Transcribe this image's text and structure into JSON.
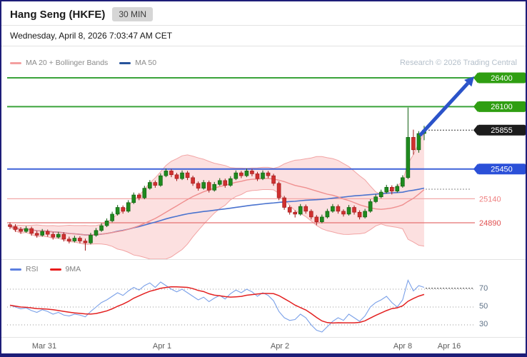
{
  "header": {
    "title": "Hang Seng (HKFE)",
    "timeframe_badge": "30 MIN",
    "datetime": "Wednesday, April 8, 2026 7:03:47 AM CET"
  },
  "legend": {
    "ma20_label": "MA 20 + Bollinger Bands",
    "ma50_label": "MA 50"
  },
  "watermark": "Research © 2026 Trading Central",
  "indicator_legend": {
    "rsi_label": "RSI",
    "ma_label": "9MA"
  },
  "rsi_scale": {
    "upper": "70",
    "middle": "50",
    "lower": "30"
  },
  "colors": {
    "up_candle": "#1f8a1f",
    "up_candle_edge": "#0c5c0c",
    "down_candle": "#d03030",
    "down_candle_edge": "#9c1616",
    "bollinger_fill": "rgba(247,178,178,0.40)",
    "bollinger_edge": "rgba(240,150,150,0.85)",
    "ma20_line": "#ef8f8f",
    "ma50_line": "#4a73cf",
    "rsi_line": "#7aa0e8",
    "rsi_ma_line": "#e32020",
    "arrow": "#2b53c9",
    "resistance_green": "#3aa33a",
    "support_blue": "#3f63d8"
  },
  "chart_data": {
    "type": "candlestick",
    "instrument": "Hang Seng (HKFE)",
    "interval": "30 MIN",
    "ylim": [
      24550,
      26650
    ],
    "last_price": 25855,
    "levels": [
      {
        "price": 26400,
        "label": "26400",
        "line_color": "#3aa33a",
        "line_width": 2,
        "label_bg": "#2f9e12",
        "label_text": "#ffffff",
        "style": "tag"
      },
      {
        "price": 26100,
        "label": "26100",
        "line_color": "#3aa33a",
        "line_width": 2,
        "label_bg": "#2f9e12",
        "label_text": "#ffffff",
        "style": "tag"
      },
      {
        "price": 25855,
        "label": "25855",
        "line_color": "none",
        "label_bg": "#1c1c1c",
        "label_text": "#ffffff",
        "style": "tag-dotted"
      },
      {
        "price": 25450,
        "label": "25450",
        "line_color": "#3f63d8",
        "line_width": 2,
        "label_bg": "#2b50d8",
        "label_text": "#ffffff",
        "style": "tag"
      },
      {
        "price": 25140,
        "label": "25140",
        "line_color": "#f2a8a8",
        "line_width": 1.3,
        "label_text": "#ef8080",
        "style": "text"
      },
      {
        "price": 24890,
        "label": "24890",
        "line_color": "#e57070",
        "line_width": 1.3,
        "label_text": "#e05050",
        "style": "text"
      }
    ],
    "overlays": {
      "ma20_window": 20,
      "ma50_window": 50,
      "bollinger_mult": 2
    },
    "candles": [
      [
        24870,
        24895,
        24825,
        24850
      ],
      [
        24850,
        24875,
        24795,
        24820
      ],
      [
        24820,
        24845,
        24775,
        24800
      ],
      [
        24800,
        24855,
        24785,
        24830
      ],
      [
        24830,
        24850,
        24755,
        24780
      ],
      [
        24780,
        24805,
        24735,
        24760
      ],
      [
        24760,
        24825,
        24745,
        24800
      ],
      [
        24800,
        24820,
        24745,
        24770
      ],
      [
        24770,
        24795,
        24715,
        24740
      ],
      [
        24740,
        24795,
        24725,
        24770
      ],
      [
        24770,
        24790,
        24695,
        24720
      ],
      [
        24720,
        24745,
        24675,
        24700
      ],
      [
        24700,
        24755,
        24685,
        24730
      ],
      [
        24730,
        24750,
        24675,
        24700
      ],
      [
        24700,
        24725,
        24600,
        24680
      ],
      [
        24680,
        24785,
        24665,
        24760
      ],
      [
        24760,
        24835,
        24745,
        24810
      ],
      [
        24810,
        24885,
        24795,
        24860
      ],
      [
        24860,
        24935,
        24845,
        24910
      ],
      [
        24910,
        25005,
        24895,
        24980
      ],
      [
        24980,
        25075,
        24965,
        25050
      ],
      [
        25050,
        25070,
        24985,
        25010
      ],
      [
        25010,
        25125,
        24995,
        25100
      ],
      [
        25100,
        25205,
        25085,
        25180
      ],
      [
        25180,
        25200,
        25125,
        25150
      ],
      [
        25150,
        25275,
        25135,
        25250
      ],
      [
        25250,
        25335,
        25235,
        25310
      ],
      [
        25310,
        25330,
        25255,
        25280
      ],
      [
        25280,
        25405,
        25265,
        25380
      ],
      [
        25380,
        25455,
        25365,
        25430
      ],
      [
        25430,
        25450,
        25365,
        25390
      ],
      [
        25390,
        25410,
        25325,
        25350
      ],
      [
        25350,
        25435,
        25335,
        25410
      ],
      [
        25410,
        25430,
        25335,
        25360
      ],
      [
        25360,
        25380,
        25275,
        25300
      ],
      [
        25300,
        25320,
        25225,
        25250
      ],
      [
        25250,
        25335,
        25235,
        25310
      ],
      [
        25310,
        25330,
        25205,
        25230
      ],
      [
        25230,
        25315,
        25215,
        25290
      ],
      [
        25290,
        25355,
        25275,
        25330
      ],
      [
        25330,
        25350,
        25255,
        25280
      ],
      [
        25280,
        25375,
        25265,
        25350
      ],
      [
        25350,
        25435,
        25335,
        25410
      ],
      [
        25410,
        25430,
        25355,
        25380
      ],
      [
        25380,
        25455,
        25365,
        25430
      ],
      [
        25430,
        25450,
        25375,
        25400
      ],
      [
        25400,
        25420,
        25325,
        25350
      ],
      [
        25350,
        25435,
        25335,
        25410
      ],
      [
        25410,
        25430,
        25355,
        25380
      ],
      [
        25380,
        25400,
        25275,
        25300
      ],
      [
        25300,
        25320,
        25125,
        25150
      ],
      [
        25150,
        25170,
        25025,
        25050
      ],
      [
        25050,
        25070,
        24975,
        25000
      ],
      [
        25000,
        25020,
        24945,
        24980
      ],
      [
        24980,
        25085,
        24965,
        25060
      ],
      [
        25060,
        25080,
        24985,
        25010
      ],
      [
        25010,
        25030,
        24925,
        24950
      ],
      [
        24950,
        24970,
        24865,
        24900
      ],
      [
        24900,
        24975,
        24885,
        24950
      ],
      [
        24950,
        25035,
        24935,
        25010
      ],
      [
        25010,
        25085,
        24995,
        25060
      ],
      [
        25060,
        25080,
        24985,
        25010
      ],
      [
        25010,
        25030,
        24955,
        24980
      ],
      [
        24980,
        25075,
        24965,
        25050
      ],
      [
        25050,
        25070,
        24975,
        25000
      ],
      [
        25000,
        25020,
        24925,
        24950
      ],
      [
        24950,
        25035,
        24935,
        25010
      ],
      [
        25010,
        25135,
        24995,
        25110
      ],
      [
        25110,
        25185,
        25095,
        25160
      ],
      [
        25160,
        25235,
        25145,
        25210
      ],
      [
        25210,
        25285,
        25195,
        25260
      ],
      [
        25260,
        25280,
        25185,
        25220
      ],
      [
        25220,
        25295,
        25205,
        25270
      ],
      [
        25270,
        25385,
        25255,
        25360
      ],
      [
        25360,
        26090,
        25345,
        25780
      ],
      [
        25780,
        25860,
        25600,
        25650
      ],
      [
        25650,
        25845,
        25620,
        25820
      ],
      [
        25820,
        25900,
        25750,
        25855
      ]
    ],
    "rsi": {
      "values": [
        52,
        50,
        48,
        49,
        46,
        44,
        47,
        45,
        42,
        44,
        41,
        40,
        42,
        41,
        39,
        45,
        50,
        55,
        58,
        62,
        66,
        63,
        68,
        72,
        69,
        74,
        77,
        72,
        78,
        74,
        70,
        67,
        70,
        66,
        62,
        58,
        61,
        56,
        60,
        63,
        59,
        65,
        69,
        66,
        70,
        67,
        62,
        66,
        63,
        57,
        45,
        38,
        35,
        36,
        42,
        38,
        30,
        24,
        22,
        28,
        34,
        38,
        35,
        42,
        38,
        34,
        40,
        50,
        55,
        58,
        62,
        55,
        50,
        58,
        80,
        68,
        74,
        72
      ],
      "ma_window": 9,
      "levels": [
        70,
        50,
        30
      ]
    },
    "annotations": {
      "arrow": {
        "from_price": 25800,
        "to_price": 26415
      },
      "dotted_last_price": 25855,
      "dotted_secondary": 25240,
      "rsi_dotted_end": 71
    },
    "x_ticks": [
      {
        "label": "Mar 31",
        "x": 60
      },
      {
        "label": "Apr 1",
        "x": 225
      },
      {
        "label": "Apr 2",
        "x": 390
      },
      {
        "label": "Apr 8",
        "x": 562
      },
      {
        "label": "Apr 16",
        "x": 627
      }
    ]
  }
}
